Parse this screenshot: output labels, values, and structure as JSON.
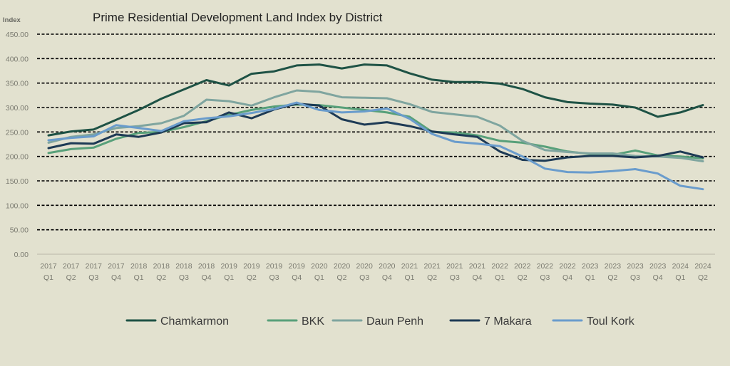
{
  "chart_data": {
    "type": "line",
    "title": "Prime Residential Development Land Index by District",
    "ylabel": "Index",
    "xlabel": "",
    "ylim": [
      0,
      450
    ],
    "y_ticks": [
      "0.00",
      "50.00",
      "100.00",
      "150.00",
      "200.00",
      "250.00",
      "300.00",
      "350.00",
      "400.00",
      "450.00"
    ],
    "y_tick_values": [
      0,
      50,
      100,
      150,
      200,
      250,
      300,
      350,
      400,
      450
    ],
    "grid": true,
    "legend": "bottom",
    "categories": [
      {
        "year": "2017",
        "q": "Q1"
      },
      {
        "year": "2017",
        "q": "Q2"
      },
      {
        "year": "2017",
        "q": "Q3"
      },
      {
        "year": "2017",
        "q": "Q4"
      },
      {
        "year": "2018",
        "q": "Q1"
      },
      {
        "year": "2018",
        "q": "Q2"
      },
      {
        "year": "2018",
        "q": "Q3"
      },
      {
        "year": "2018",
        "q": "Q4"
      },
      {
        "year": "2019",
        "q": "Q1"
      },
      {
        "year": "2019",
        "q": "Q2"
      },
      {
        "year": "2019",
        "q": "Q3"
      },
      {
        "year": "2019",
        "q": "Q4"
      },
      {
        "year": "2020",
        "q": "Q1"
      },
      {
        "year": "2020",
        "q": "Q2"
      },
      {
        "year": "2020",
        "q": "Q3"
      },
      {
        "year": "2020",
        "q": "Q4"
      },
      {
        "year": "2021",
        "q": "Q1"
      },
      {
        "year": "2021",
        "q": "Q2"
      },
      {
        "year": "2021",
        "q": "Q3"
      },
      {
        "year": "2021",
        "q": "Q4"
      },
      {
        "year": "2022",
        "q": "Q1"
      },
      {
        "year": "2022",
        "q": "Q2"
      },
      {
        "year": "2022",
        "q": "Q3"
      },
      {
        "year": "2022",
        "q": "Q4"
      },
      {
        "year": "2023",
        "q": "Q1"
      },
      {
        "year": "2023",
        "q": "Q2"
      },
      {
        "year": "2023",
        "q": "Q3"
      },
      {
        "year": "2023",
        "q": "Q4"
      },
      {
        "year": "2024",
        "q": "Q1"
      },
      {
        "year": "2024",
        "q": "Q2"
      }
    ],
    "series": [
      {
        "name": "Chamkarmon",
        "color": "#1e5245",
        "values": [
          243,
          251,
          255,
          275,
          295,
          318,
          337,
          356,
          345,
          369,
          374,
          386,
          388,
          380,
          388,
          386,
          370,
          357,
          352,
          352,
          349,
          338,
          321,
          311,
          308,
          306,
          300,
          281,
          290,
          305
        ]
      },
      {
        "name": "BKK",
        "color": "#58a07a",
        "values": [
          207,
          215,
          218,
          236,
          248,
          250,
          260,
          272,
          285,
          295,
          302,
          306,
          305,
          300,
          295,
          290,
          281,
          250,
          249,
          243,
          232,
          228,
          220,
          210,
          205,
          203,
          212,
          202,
          200,
          196
        ]
      },
      {
        "name": "Daun Penh",
        "color": "#7fa59f",
        "values": [
          228,
          240,
          245,
          258,
          262,
          268,
          283,
          316,
          313,
          304,
          321,
          335,
          332,
          321,
          320,
          319,
          307,
          291,
          286,
          281,
          263,
          232,
          213,
          209,
          206,
          206,
          201,
          200,
          197,
          190
        ]
      },
      {
        "name": "7 Makara",
        "color": "#1d3a55",
        "values": [
          217,
          227,
          226,
          245,
          240,
          249,
          268,
          270,
          290,
          278,
          296,
          308,
          304,
          276,
          265,
          270,
          262,
          251,
          245,
          240,
          210,
          193,
          191,
          198,
          201,
          201,
          198,
          201,
          210,
          198
        ]
      },
      {
        "name": "Toul Kork",
        "color": "#6a9ccc",
        "values": [
          233,
          238,
          241,
          264,
          258,
          252,
          272,
          278,
          282,
          289,
          297,
          310,
          295,
          290,
          292,
          298,
          277,
          246,
          230,
          226,
          221,
          200,
          175,
          168,
          167,
          170,
          174,
          165,
          140,
          133
        ]
      }
    ]
  }
}
